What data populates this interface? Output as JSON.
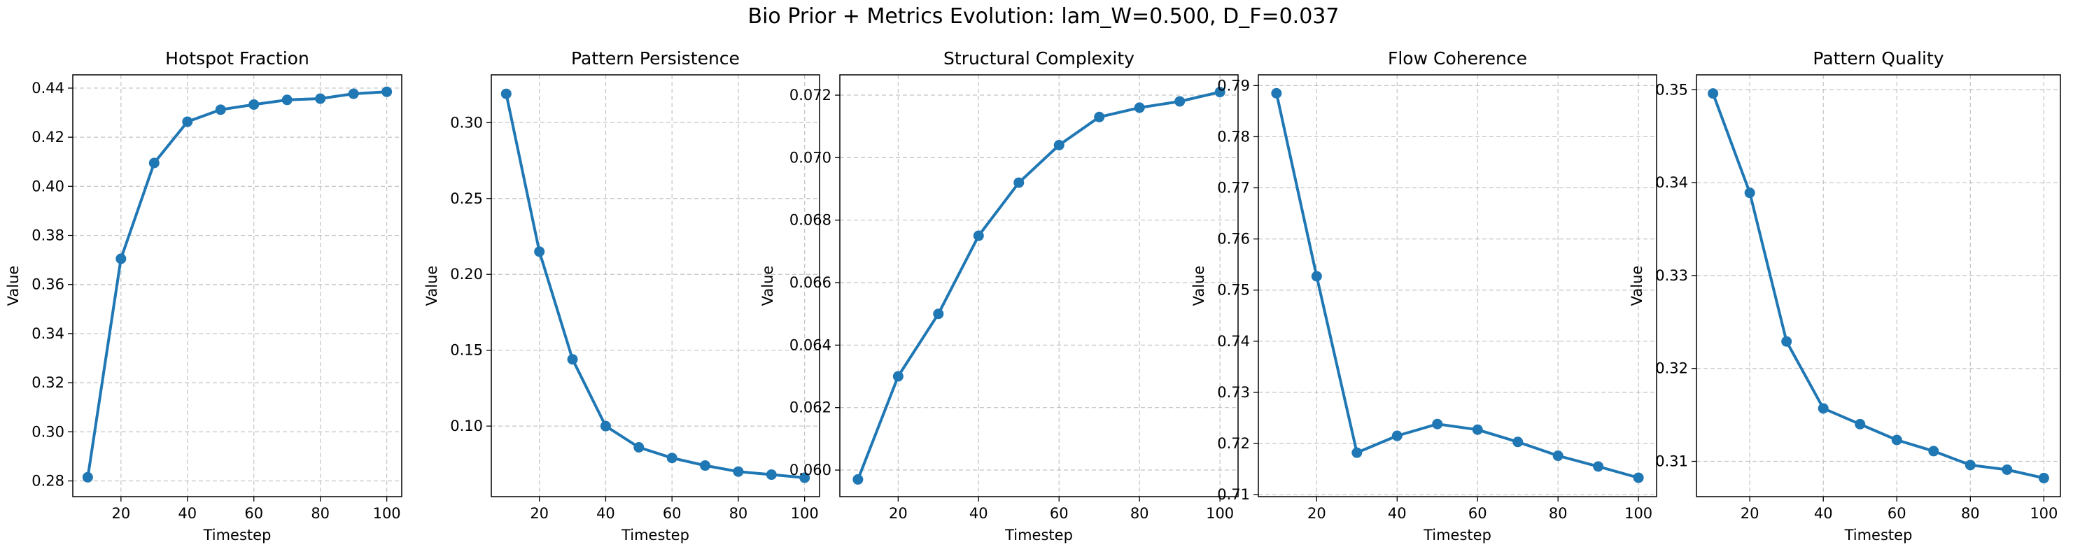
{
  "figure": {
    "title": "Bio Prior + Metrics Evolution: lam_W=0.500, D_F=0.037"
  },
  "colors": {
    "line": "#1f77b4",
    "grid": "#b0b0b0",
    "axes": "#000000"
  },
  "chart_data": [
    {
      "type": "line",
      "title": "Hotspot Fraction",
      "xlabel": "Timestep",
      "ylabel": "Value",
      "x": [
        10,
        20,
        30,
        40,
        50,
        60,
        70,
        80,
        90,
        100
      ],
      "series": [
        {
          "values": [
            0.2815,
            0.3705,
            0.4095,
            0.4263,
            0.4312,
            0.4333,
            0.4352,
            0.4357,
            0.4377,
            0.4385
          ]
        }
      ],
      "xlim": [
        5.5,
        104.5
      ],
      "ylim": [
        0.2736,
        0.4454
      ],
      "xticks": [
        20,
        40,
        60,
        80,
        100
      ],
      "yticks": [
        0.28,
        0.3,
        0.32,
        0.34,
        0.36,
        0.38,
        0.4,
        0.42,
        0.44
      ],
      "ytick_labels": [
        "0.28",
        "0.30",
        "0.32",
        "0.34",
        "0.36",
        "0.38",
        "0.40",
        "0.42",
        "0.44"
      ],
      "grid": true,
      "marker": "circle"
    },
    {
      "type": "line",
      "title": "Pattern Persistence",
      "xlabel": "Timestep",
      "ylabel": "Value",
      "x": [
        10,
        20,
        30,
        40,
        50,
        60,
        70,
        80,
        90,
        100
      ],
      "series": [
        {
          "values": [
            0.319,
            0.215,
            0.144,
            0.1,
            0.086,
            0.079,
            0.074,
            0.07,
            0.068,
            0.066
          ]
        }
      ],
      "xlim": [
        5.5,
        104.5
      ],
      "ylim": [
        0.0535,
        0.3315
      ],
      "xticks": [
        20,
        40,
        60,
        80,
        100
      ],
      "yticks": [
        0.1,
        0.15,
        0.2,
        0.25,
        0.3
      ],
      "ytick_labels": [
        "0.10",
        "0.15",
        "0.20",
        "0.25",
        "0.30"
      ],
      "grid": true,
      "marker": "circle"
    },
    {
      "type": "line",
      "title": "Structural Complexity",
      "xlabel": "Timestep",
      "ylabel": "Value",
      "x": [
        10,
        20,
        30,
        40,
        50,
        60,
        70,
        80,
        90,
        100
      ],
      "series": [
        {
          "values": [
            0.0597,
            0.063,
            0.065,
            0.0675,
            0.0692,
            0.0704,
            0.0713,
            0.0716,
            0.0718,
            0.0721
          ]
        }
      ],
      "xlim": [
        5.5,
        104.5
      ],
      "ylim": [
        0.05915,
        0.07265
      ],
      "xticks": [
        20,
        40,
        60,
        80,
        100
      ],
      "yticks": [
        0.06,
        0.062,
        0.064,
        0.066,
        0.068,
        0.07,
        0.072
      ],
      "ytick_labels": [
        "0.060",
        "0.062",
        "0.064",
        "0.066",
        "0.068",
        "0.070",
        "0.072"
      ],
      "grid": true,
      "marker": "circle"
    },
    {
      "type": "line",
      "title": "Flow Coherence",
      "xlabel": "Timestep",
      "ylabel": "Value",
      "x": [
        10,
        20,
        30,
        40,
        50,
        60,
        70,
        80,
        90,
        100
      ],
      "series": [
        {
          "values": [
            0.7885,
            0.7527,
            0.7182,
            0.7215,
            0.7238,
            0.7227,
            0.7203,
            0.7176,
            0.7155,
            0.7133
          ]
        }
      ],
      "xlim": [
        5.5,
        104.5
      ],
      "ylim": [
        0.7096,
        0.7921
      ],
      "xticks": [
        20,
        40,
        60,
        80,
        100
      ],
      "yticks": [
        0.71,
        0.72,
        0.73,
        0.74,
        0.75,
        0.76,
        0.77,
        0.78,
        0.79
      ],
      "ytick_labels": [
        "0.71",
        "0.72",
        "0.73",
        "0.74",
        "0.75",
        "0.76",
        "0.77",
        "0.78",
        "0.79"
      ],
      "grid": true,
      "marker": "circle"
    },
    {
      "type": "line",
      "title": "Pattern Quality",
      "xlabel": "Timestep",
      "ylabel": "Value",
      "x": [
        10,
        20,
        30,
        40,
        50,
        60,
        70,
        80,
        90,
        100
      ],
      "series": [
        {
          "values": [
            0.3496,
            0.3389,
            0.3229,
            0.3157,
            0.314,
            0.3123,
            0.3111,
            0.3096,
            0.3091,
            0.3082
          ]
        }
      ],
      "xlim": [
        5.5,
        104.5
      ],
      "ylim": [
        0.3062,
        0.3516
      ],
      "xticks": [
        20,
        40,
        60,
        80,
        100
      ],
      "yticks": [
        0.31,
        0.32,
        0.33,
        0.34,
        0.35
      ],
      "ytick_labels": [
        "0.31",
        "0.32",
        "0.33",
        "0.34",
        "0.35"
      ],
      "grid": true,
      "marker": "circle"
    }
  ]
}
